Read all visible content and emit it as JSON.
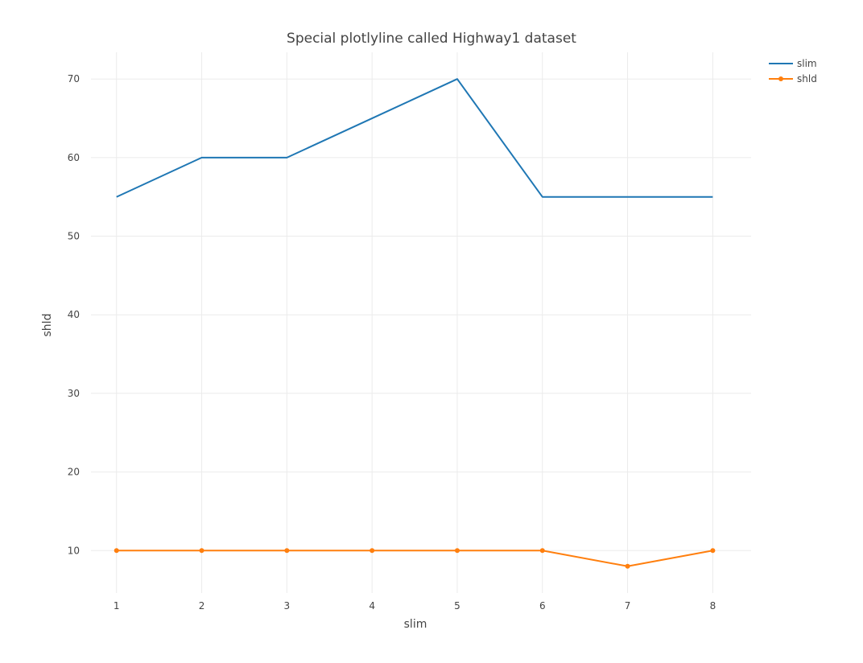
{
  "chart_data": {
    "type": "line",
    "title": "Special plotlyline called Highway1 dataset",
    "xlabel": "slim",
    "ylabel": "shld",
    "x": [
      1,
      2,
      3,
      4,
      5,
      6,
      7,
      8
    ],
    "xlim": [
      0.7,
      8.45
    ],
    "ylim": [
      4.6,
      73.4
    ],
    "x_ticks": [
      1,
      2,
      3,
      4,
      5,
      6,
      7,
      8
    ],
    "y_ticks": [
      10,
      20,
      30,
      40,
      50,
      60,
      70
    ],
    "grid": true,
    "legend_position": "top-right",
    "series": [
      {
        "name": "slim",
        "mode": "lines",
        "color": "#1f77b4",
        "values": [
          55,
          60,
          60,
          65,
          70,
          55,
          55,
          55
        ]
      },
      {
        "name": "shld",
        "mode": "lines+markers",
        "color": "#ff7f0e",
        "values": [
          10,
          10,
          10,
          10,
          10,
          10,
          8,
          10
        ]
      }
    ]
  }
}
